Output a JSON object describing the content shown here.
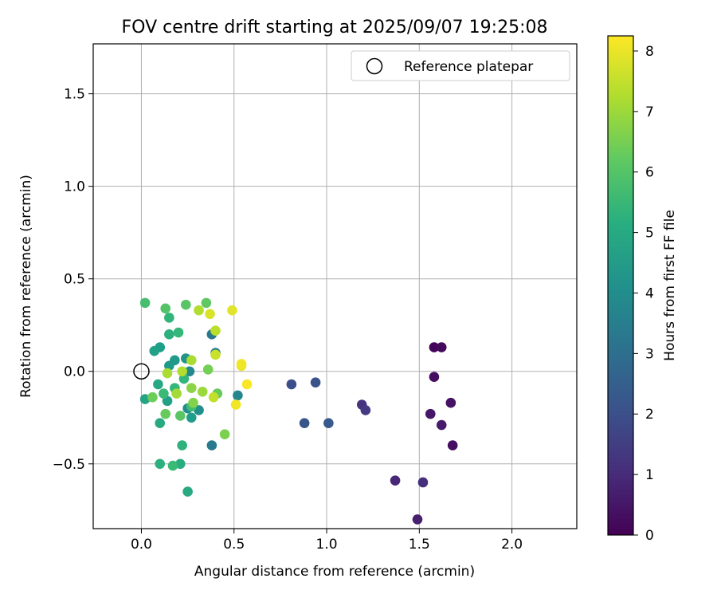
{
  "chart_data": {
    "type": "scatter",
    "title": "FOV centre drift starting at 2025/09/07 19:25:08",
    "xlabel": "Angular distance from reference (arcmin)",
    "ylabel": "Rotation from reference (arcmin)",
    "xlim": [
      -0.26,
      2.35
    ],
    "ylim": [
      -0.85,
      1.77
    ],
    "x_ticks": [
      0.0,
      0.5,
      1.0,
      1.5,
      2.0
    ],
    "x_tick_labels": [
      "0.0",
      "0.5",
      "1.0",
      "1.5",
      "2.0"
    ],
    "y_ticks": [
      -0.5,
      0.0,
      0.5,
      1.0,
      1.5
    ],
    "y_tick_labels": [
      "−0.5",
      "0.0",
      "0.5",
      "1.0",
      "1.5"
    ],
    "grid": true,
    "legend": {
      "position": "top-right",
      "entries": [
        "Reference platepar"
      ]
    },
    "reference_point": {
      "x": 0.0,
      "y": 0.0,
      "label": "Reference platepar"
    },
    "colorbar": {
      "label": "Hours from first FF file",
      "colormap": "viridis",
      "range": [
        0,
        8.25
      ],
      "ticks": [
        0,
        1,
        2,
        3,
        4,
        5,
        6,
        7,
        8
      ],
      "tick_labels": [
        "0",
        "1",
        "2",
        "3",
        "4",
        "5",
        "6",
        "7",
        "8"
      ]
    },
    "points": [
      {
        "x": 1.58,
        "y": 0.13,
        "c": 0.1
      },
      {
        "x": 1.62,
        "y": 0.13,
        "c": 0.2
      },
      {
        "x": 1.58,
        "y": -0.03,
        "c": 0.3
      },
      {
        "x": 1.67,
        "y": -0.17,
        "c": 0.4
      },
      {
        "x": 1.56,
        "y": -0.23,
        "c": 0.5
      },
      {
        "x": 1.62,
        "y": -0.29,
        "c": 0.6
      },
      {
        "x": 1.68,
        "y": -0.4,
        "c": 0.3
      },
      {
        "x": 1.49,
        "y": -0.8,
        "c": 0.7
      },
      {
        "x": 1.37,
        "y": -0.59,
        "c": 0.9
      },
      {
        "x": 1.52,
        "y": -0.6,
        "c": 1.1
      },
      {
        "x": 1.19,
        "y": -0.18,
        "c": 1.2
      },
      {
        "x": 1.21,
        "y": -0.21,
        "c": 1.4
      },
      {
        "x": 0.81,
        "y": -0.07,
        "c": 2.0
      },
      {
        "x": 0.94,
        "y": -0.06,
        "c": 2.1
      },
      {
        "x": 0.88,
        "y": -0.28,
        "c": 2.2
      },
      {
        "x": 1.01,
        "y": -0.28,
        "c": 2.3
      },
      {
        "x": 0.38,
        "y": 0.2,
        "c": 3.3
      },
      {
        "x": 0.4,
        "y": 0.1,
        "c": 3.5
      },
      {
        "x": 0.38,
        "y": -0.4,
        "c": 3.4
      },
      {
        "x": 0.52,
        "y": -0.13,
        "c": 3.8
      },
      {
        "x": 0.26,
        "y": 0.0,
        "c": 3.9
      },
      {
        "x": 0.25,
        "y": -0.2,
        "c": 4.0
      },
      {
        "x": 0.31,
        "y": -0.21,
        "c": 4.1
      },
      {
        "x": 0.24,
        "y": 0.07,
        "c": 4.3
      },
      {
        "x": 0.15,
        "y": 0.03,
        "c": 4.4
      },
      {
        "x": 0.18,
        "y": 0.06,
        "c": 4.5
      },
      {
        "x": 0.1,
        "y": 0.13,
        "c": 4.6
      },
      {
        "x": 0.07,
        "y": 0.11,
        "c": 4.7
      },
      {
        "x": 0.02,
        "y": -0.15,
        "c": 4.8
      },
      {
        "x": 0.09,
        "y": -0.07,
        "c": 4.9
      },
      {
        "x": 0.14,
        "y": -0.16,
        "c": 4.7
      },
      {
        "x": 0.1,
        "y": -0.28,
        "c": 5.0
      },
      {
        "x": 0.27,
        "y": -0.25,
        "c": 4.6
      },
      {
        "x": 0.25,
        "y": -0.65,
        "c": 5.0
      },
      {
        "x": 0.21,
        "y": -0.5,
        "c": 5.1
      },
      {
        "x": 0.22,
        "y": -0.4,
        "c": 5.3
      },
      {
        "x": 0.1,
        "y": -0.5,
        "c": 5.2
      },
      {
        "x": 0.15,
        "y": 0.2,
        "c": 5.2
      },
      {
        "x": 0.15,
        "y": 0.29,
        "c": 5.4
      },
      {
        "x": 0.2,
        "y": 0.21,
        "c": 5.5
      },
      {
        "x": 0.23,
        "y": -0.04,
        "c": 5.4
      },
      {
        "x": 0.18,
        "y": -0.09,
        "c": 5.5
      },
      {
        "x": 0.12,
        "y": -0.12,
        "c": 5.6
      },
      {
        "x": 0.27,
        "y": -0.19,
        "c": 5.7
      },
      {
        "x": 0.17,
        "y": -0.51,
        "c": 5.6
      },
      {
        "x": 0.02,
        "y": 0.37,
        "c": 5.8
      },
      {
        "x": 0.13,
        "y": 0.34,
        "c": 6.0
      },
      {
        "x": 0.24,
        "y": 0.36,
        "c": 6.1
      },
      {
        "x": 0.35,
        "y": 0.37,
        "c": 6.2
      },
      {
        "x": 0.21,
        "y": -0.24,
        "c": 6.1
      },
      {
        "x": 0.13,
        "y": -0.23,
        "c": 6.3
      },
      {
        "x": 0.06,
        "y": -0.14,
        "c": 6.4
      },
      {
        "x": 0.41,
        "y": -0.12,
        "c": 6.3
      },
      {
        "x": 0.45,
        "y": -0.34,
        "c": 6.6
      },
      {
        "x": 0.36,
        "y": 0.01,
        "c": 6.5
      },
      {
        "x": 0.28,
        "y": -0.17,
        "c": 6.7
      },
      {
        "x": 0.27,
        "y": -0.09,
        "c": 6.8
      },
      {
        "x": 0.33,
        "y": -0.11,
        "c": 7.0
      },
      {
        "x": 0.19,
        "y": -0.12,
        "c": 7.1
      },
      {
        "x": 0.14,
        "y": -0.01,
        "c": 7.2
      },
      {
        "x": 0.22,
        "y": 0.0,
        "c": 7.3
      },
      {
        "x": 0.27,
        "y": 0.06,
        "c": 7.2
      },
      {
        "x": 0.31,
        "y": 0.33,
        "c": 7.3
      },
      {
        "x": 0.4,
        "y": 0.22,
        "c": 7.4
      },
      {
        "x": 0.4,
        "y": 0.09,
        "c": 7.6
      },
      {
        "x": 0.39,
        "y": -0.14,
        "c": 7.5
      },
      {
        "x": 0.37,
        "y": 0.31,
        "c": 7.8
      },
      {
        "x": 0.49,
        "y": 0.33,
        "c": 7.9
      },
      {
        "x": 0.54,
        "y": 0.03,
        "c": 8.0
      },
      {
        "x": 0.54,
        "y": 0.04,
        "c": 8.1
      },
      {
        "x": 0.51,
        "y": -0.18,
        "c": 8.1
      },
      {
        "x": 0.57,
        "y": -0.07,
        "c": 8.2
      }
    ]
  }
}
